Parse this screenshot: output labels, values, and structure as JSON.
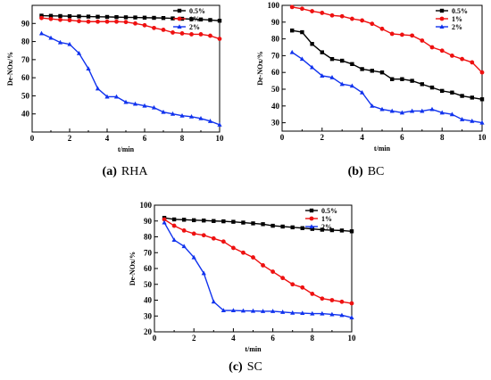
{
  "chart_data": [
    {
      "type": "line",
      "panel_id": "a",
      "caption_letter": "(a)",
      "caption_name": "RHA",
      "xlabel": "t/min",
      "ylabel": "De-NOx/%",
      "xlim": [
        0,
        10
      ],
      "ylim": [
        30,
        100
      ],
      "xticks": [
        0,
        2,
        4,
        6,
        8,
        10
      ],
      "yticks": [
        40,
        50,
        60,
        70,
        80,
        90
      ],
      "legend_position": "top-right",
      "series": [
        {
          "name": "0.5%",
          "color": "#000000",
          "marker": "square",
          "x": [
            0.5,
            1,
            1.5,
            2,
            2.5,
            3,
            3.5,
            4,
            4.5,
            5,
            5.5,
            6,
            6.5,
            7,
            7.5,
            8,
            8.5,
            9,
            9.5,
            10
          ],
          "y": [
            94.3,
            94.2,
            94.1,
            94.0,
            93.9,
            93.8,
            93.7,
            93.6,
            93.5,
            93.4,
            93.3,
            93.2,
            93.1,
            93.0,
            92.8,
            92.6,
            92.4,
            92.2,
            91.9,
            91.5
          ]
        },
        {
          "name": "1%",
          "color": "#ee1111",
          "marker": "circle",
          "x": [
            0.5,
            1,
            1.5,
            2,
            2.5,
            3,
            3.5,
            4,
            4.5,
            5,
            5.5,
            6,
            6.5,
            7,
            7.5,
            8,
            8.5,
            9,
            9.5,
            10
          ],
          "y": [
            93,
            92.5,
            92,
            91.8,
            91.3,
            91,
            91,
            91,
            91,
            90.8,
            90,
            89,
            87.5,
            86.5,
            85,
            84.5,
            84,
            84,
            83.2,
            81.5
          ]
        },
        {
          "name": "2%",
          "color": "#1133ee",
          "marker": "triangle",
          "x": [
            0.5,
            1,
            1.5,
            2,
            2.5,
            3,
            3.5,
            4,
            4.5,
            5,
            5.5,
            6,
            6.5,
            7,
            7.5,
            8,
            8.5,
            9,
            9.5,
            10
          ],
          "y": [
            84.5,
            82,
            79.5,
            78.5,
            73.5,
            65,
            54,
            49.5,
            49.5,
            46.5,
            45.5,
            44.5,
            43.5,
            41,
            40,
            39,
            38.5,
            37.5,
            36,
            34
          ]
        }
      ]
    },
    {
      "type": "line",
      "panel_id": "b",
      "caption_letter": "(b)",
      "caption_name": "BC",
      "xlabel": "t/min",
      "ylabel": "De-NOx/%",
      "xlim": [
        0,
        10
      ],
      "ylim": [
        25,
        100
      ],
      "xticks": [
        0,
        2,
        4,
        6,
        8,
        10
      ],
      "yticks": [
        30,
        40,
        50,
        60,
        70,
        80,
        90,
        100
      ],
      "legend_position": "top-right",
      "series": [
        {
          "name": "0.5%",
          "color": "#000000",
          "marker": "square",
          "x": [
            0.5,
            1,
            1.5,
            2,
            2.5,
            3,
            3.5,
            4,
            4.5,
            5,
            5.5,
            6,
            6.5,
            7,
            7.5,
            8,
            8.5,
            9,
            9.5,
            10
          ],
          "y": [
            85,
            84,
            77,
            72,
            68,
            67,
            65,
            62,
            61,
            60,
            56,
            56,
            55,
            53,
            51,
            49,
            48,
            46,
            45,
            44
          ]
        },
        {
          "name": "1%",
          "color": "#ee1111",
          "marker": "circle",
          "x": [
            0.5,
            1,
            1.5,
            2,
            2.5,
            3,
            3.5,
            4,
            4.5,
            5,
            5.5,
            6,
            6.5,
            7,
            7.5,
            8,
            8.5,
            9,
            9.5,
            10
          ],
          "y": [
            99,
            98,
            96.5,
            95.5,
            94,
            93.5,
            92,
            91,
            89,
            86,
            83,
            82.5,
            82,
            79,
            75,
            73,
            70,
            68,
            66,
            60
          ]
        },
        {
          "name": "2%",
          "color": "#1133ee",
          "marker": "triangle",
          "x": [
            0.5,
            1,
            1.5,
            2,
            2.5,
            3,
            3.5,
            4,
            4.5,
            5,
            5.5,
            6,
            6.5,
            7,
            7.5,
            8,
            8.5,
            9,
            9.5,
            10
          ],
          "y": [
            72,
            68,
            63,
            58,
            57,
            53,
            52,
            48,
            40,
            38,
            37,
            36,
            37,
            37,
            38,
            36,
            35,
            32,
            31,
            30
          ]
        }
      ]
    },
    {
      "type": "line",
      "panel_id": "c",
      "caption_letter": "(c)",
      "caption_name": "SC",
      "xlabel": "t/min",
      "ylabel": "De-NOx/%",
      "xlim": [
        0,
        10
      ],
      "ylim": [
        20,
        100
      ],
      "xticks": [
        0,
        2,
        4,
        6,
        8,
        10
      ],
      "yticks": [
        20,
        30,
        40,
        50,
        60,
        70,
        80,
        90,
        100
      ],
      "legend_position": "top-right",
      "series": [
        {
          "name": "0.5%",
          "color": "#000000",
          "marker": "square",
          "x": [
            0.5,
            1,
            1.5,
            2,
            2.5,
            3,
            3.5,
            4,
            4.5,
            5,
            5.5,
            6,
            6.5,
            7,
            7.5,
            8,
            8.5,
            9,
            9.5,
            10
          ],
          "y": [
            92,
            91,
            90.8,
            90.5,
            90.3,
            90,
            89.8,
            89.5,
            89,
            88.5,
            88,
            87,
            86.5,
            86,
            85.5,
            85,
            84.5,
            84.2,
            84,
            83.5
          ]
        },
        {
          "name": "1%",
          "color": "#ee1111",
          "marker": "circle",
          "x": [
            0.5,
            1,
            1.5,
            2,
            2.5,
            3,
            3.5,
            4,
            4.5,
            5,
            5.5,
            6,
            6.5,
            7,
            7.5,
            8,
            8.5,
            9,
            9.5,
            10
          ],
          "y": [
            91,
            87,
            84,
            82,
            81,
            79,
            77,
            73,
            70,
            67,
            62,
            58,
            54,
            50,
            48,
            44,
            41,
            40,
            39,
            38
          ]
        },
        {
          "name": "2%",
          "color": "#1133ee",
          "marker": "triangle",
          "x": [
            0.5,
            1,
            1.5,
            2,
            2.5,
            3,
            3.5,
            4,
            4.5,
            5,
            5.5,
            6,
            6.5,
            7,
            7.5,
            8,
            8.5,
            9,
            9.5,
            10
          ],
          "y": [
            89,
            78,
            74,
            67,
            57,
            39,
            33.5,
            33.5,
            33.3,
            33.2,
            33,
            33,
            32.5,
            32,
            31.8,
            31.5,
            31.5,
            31,
            30.5,
            29
          ]
        }
      ]
    }
  ]
}
